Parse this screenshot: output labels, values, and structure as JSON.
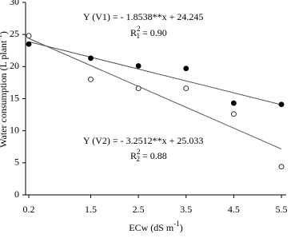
{
  "chart_data": {
    "type": "scatter",
    "x_label": {
      "text": "ECw (dS m",
      "sup": "-1",
      "close": ")"
    },
    "y_label": {
      "text": "Water consumption (L plant",
      "sup": "-1",
      "close": ")"
    },
    "x": [
      0.2,
      1.5,
      2.5,
      3.5,
      4.5,
      5.5
    ],
    "series": [
      {
        "name": "V1",
        "marker": "filled",
        "color": "#000000",
        "values": [
          23.5,
          21.3,
          20.1,
          19.7,
          14.3,
          14.1
        ],
        "trendline": {
          "slope": -1.8538,
          "intercept": 24.245
        },
        "equation": "Y (V1)  = - 1.8538**x + 24.245",
        "r2": {
          "symbol": "R",
          "sub": "1",
          "sup": "2",
          "text": "= 0.90"
        }
      },
      {
        "name": "V2",
        "marker": "open",
        "color": "#000000",
        "values": [
          24.8,
          18.0,
          16.6,
          16.6,
          12.6,
          4.4
        ],
        "trendline": {
          "slope": -3.2512,
          "intercept": 25.033
        },
        "equation": "Y (V2) = - 3.2512**x + 25.033",
        "r2": {
          "symbol": "R",
          "sub": "2",
          "sup": "2",
          "text": "= 0.88"
        }
      }
    ],
    "xlim": [
      0.2,
      5.5
    ],
    "xticks": [
      0.2,
      1.5,
      2.5,
      3.5,
      4.5,
      5.5
    ],
    "ylim": [
      0,
      30
    ],
    "yticks": [
      0,
      5,
      10,
      15,
      20,
      25,
      30
    ]
  }
}
